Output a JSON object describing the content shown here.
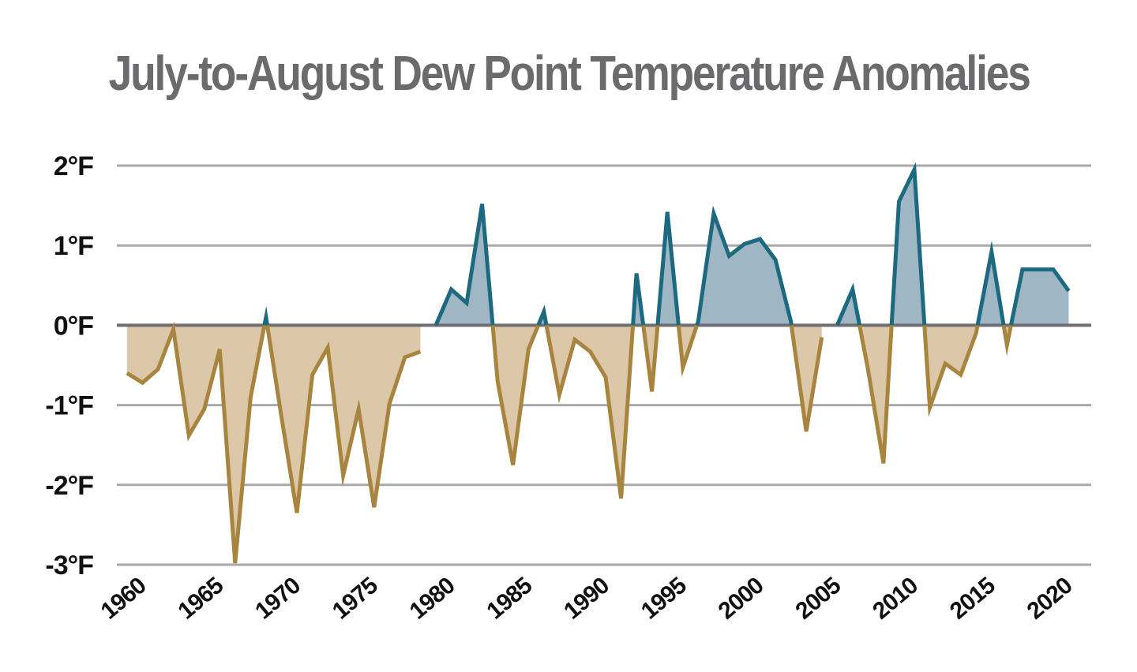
{
  "chart_data": {
    "type": "area",
    "title": "July-to-August Dew Point Temperature Anomalies",
    "xlabel": "",
    "ylabel": "",
    "ylim": [
      -3,
      2
    ],
    "xlim": [
      1958,
      2021
    ],
    "yticks": [
      2,
      1,
      0,
      -1,
      -2,
      -3
    ],
    "ytick_labels": [
      "2°F",
      "1°F",
      "0°F",
      "-1°F",
      "-2°F",
      "-3°F"
    ],
    "xticks": [
      1960,
      1965,
      1970,
      1975,
      1980,
      1985,
      1990,
      1995,
      2000,
      2005,
      2010,
      2015,
      2020
    ],
    "xtick_labels": [
      "1960",
      "1965",
      "1970",
      "1975",
      "1980",
      "1985",
      "1990",
      "1995",
      "2000",
      "2005",
      "2010",
      "2015",
      "2020"
    ],
    "grid": true,
    "x": [
      1959,
      1960,
      1961,
      1962,
      1963,
      1964,
      1965,
      1966,
      1967,
      1968,
      1969,
      1970,
      1971,
      1972,
      1973,
      1974,
      1975,
      1976,
      1977,
      1978,
      1979,
      1980,
      1981,
      1982,
      1983,
      1984,
      1985,
      1986,
      1987,
      1988,
      1989,
      1990,
      1991,
      1992,
      1993,
      1994,
      1995,
      1996,
      1997,
      1998,
      1999,
      2000,
      2001,
      2002,
      2003,
      2004,
      2005,
      2006,
      2007,
      2008,
      2009,
      2010,
      2011,
      2012,
      2013,
      2014,
      2015,
      2016,
      2017,
      2018,
      2019,
      2020
    ],
    "values": [
      -0.6,
      -0.72,
      -0.55,
      -0.05,
      -1.38,
      -1.05,
      -0.3,
      -2.98,
      -0.9,
      0.1,
      -1.15,
      -2.35,
      -0.62,
      -0.28,
      -1.88,
      -1.05,
      -2.28,
      -0.98,
      -0.4,
      -0.33,
      0.0,
      0.45,
      0.28,
      1.52,
      -0.7,
      -1.75,
      -0.3,
      0.17,
      -0.87,
      -0.18,
      -0.33,
      -0.65,
      -2.17,
      0.65,
      -0.83,
      1.42,
      -0.53,
      0.05,
      1.4,
      0.87,
      1.02,
      1.08,
      0.82,
      0.05,
      -1.33,
      -0.15,
      0.0,
      0.45,
      -0.55,
      -1.73,
      1.55,
      1.95,
      -1.03,
      -0.48,
      -0.62,
      -0.1,
      0.92,
      -0.25,
      0.7,
      0.7,
      0.7,
      0.43
    ],
    "colors": {
      "positive_line": "#1d6a80",
      "positive_fill": "#9fb7c4",
      "negative_line": "#a8853f",
      "negative_fill": "#dcc8a8",
      "grid": "#a9a9ab",
      "zero_line": "#6e6e70",
      "title": "#6b6b6d"
    }
  }
}
